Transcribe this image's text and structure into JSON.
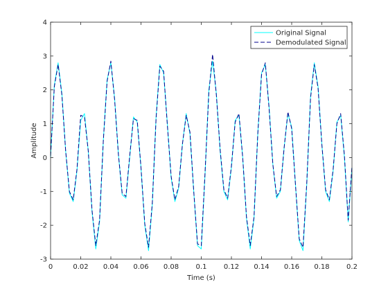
{
  "chart_data": {
    "type": "line",
    "xlabel": "Time (s)",
    "ylabel": "Amplitude",
    "xlim": [
      0,
      0.2
    ],
    "ylim": [
      -3,
      4
    ],
    "xticks": [
      0,
      0.02,
      0.04,
      0.06,
      0.08,
      0.1,
      0.12,
      0.14,
      0.16,
      0.18,
      0.2
    ],
    "yticks": [
      -3,
      -2,
      -1,
      0,
      1,
      2,
      3,
      4
    ],
    "xtick_labels": [
      "0",
      "0.02",
      "0.04",
      "0.06",
      "0.08",
      "0.1",
      "0.12",
      "0.14",
      "0.16",
      "0.18",
      "0.2"
    ],
    "ytick_labels": [
      "-3",
      "-2",
      "-1",
      "0",
      "1",
      "2",
      "3",
      "4"
    ],
    "grid": false,
    "legend_position": "top-right",
    "x": [
      0,
      0.0025,
      0.005,
      0.0075,
      0.01,
      0.0125,
      0.015,
      0.0175,
      0.02,
      0.0225,
      0.025,
      0.0275,
      0.03,
      0.0325,
      0.035,
      0.0375,
      0.04,
      0.0425,
      0.045,
      0.0475,
      0.05,
      0.0525,
      0.055,
      0.0575,
      0.06,
      0.0625,
      0.065,
      0.0675,
      0.07,
      0.0725,
      0.075,
      0.0775,
      0.08,
      0.0825,
      0.085,
      0.0875,
      0.09,
      0.0925,
      0.095,
      0.0975,
      0.1,
      0.1025,
      0.105,
      0.1075,
      0.11,
      0.1125,
      0.115,
      0.1175,
      0.12,
      0.1225,
      0.125,
      0.1275,
      0.13,
      0.1325,
      0.135,
      0.1375,
      0.14,
      0.1425,
      0.145,
      0.1475,
      0.15,
      0.1525,
      0.155,
      0.1575,
      0.16,
      0.1625,
      0.165,
      0.1675,
      0.17,
      0.1725,
      0.175,
      0.1775,
      0.18,
      0.1825,
      0.185,
      0.1875,
      0.19,
      0.1925,
      0.195,
      0.1975,
      0.2
    ],
    "series": [
      {
        "name": "Original Signal",
        "color": "#00ffff",
        "style": "solid",
        "values": [
          0,
          2.15,
          2.8,
          1.9,
          0.2,
          -1.05,
          -1.3,
          -0.4,
          1.1,
          1.3,
          0.2,
          -1.6,
          -2.7,
          -1.9,
          0.5,
          2.3,
          2.8,
          1.75,
          0.1,
          -1.1,
          -1.2,
          0.0,
          1.2,
          1.05,
          -0.3,
          -2.0,
          -2.75,
          -1.4,
          1.2,
          2.75,
          2.5,
          1.0,
          -0.6,
          -1.3,
          -0.9,
          0.4,
          1.3,
          0.7,
          -1.0,
          -2.6,
          -2.7,
          -0.5,
          2.0,
          2.85,
          1.9,
          0.2,
          -1.0,
          -1.25,
          -0.3,
          1.1,
          1.25,
          0.0,
          -1.8,
          -2.7,
          -1.8,
          0.7,
          2.5,
          2.75,
          1.5,
          -0.2,
          -1.2,
          -1.0,
          0.3,
          1.3,
          0.9,
          -0.8,
          -2.45,
          -2.75,
          -0.8,
          1.8,
          2.8,
          2.1,
          0.4,
          -1.0,
          -1.3,
          -0.4,
          1.05,
          1.25,
          0.0,
          -1.9,
          -0.3
        ]
      },
      {
        "name": "Demodulated Signal",
        "color": "#00008b",
        "style": "dashed",
        "values": [
          0.05,
          2.1,
          2.75,
          1.85,
          0.2,
          -1.0,
          -1.25,
          -0.35,
          1.25,
          1.2,
          0.2,
          -1.55,
          -2.6,
          -1.85,
          0.5,
          2.25,
          2.85,
          1.7,
          0.1,
          -1.05,
          -1.15,
          0.05,
          1.15,
          1.1,
          -0.3,
          -1.95,
          -2.65,
          -1.35,
          1.15,
          2.7,
          2.55,
          0.95,
          -0.55,
          -1.25,
          -0.85,
          0.4,
          1.25,
          0.75,
          -1.0,
          -2.55,
          -2.6,
          -0.45,
          1.9,
          3.05,
          1.85,
          0.25,
          -0.95,
          -1.2,
          -0.25,
          1.05,
          1.3,
          0.0,
          -1.75,
          -2.6,
          -1.75,
          0.7,
          2.45,
          2.8,
          1.45,
          -0.2,
          -1.15,
          -0.95,
          0.3,
          1.35,
          0.85,
          -0.8,
          -2.4,
          -2.65,
          -0.75,
          1.75,
          2.75,
          2.05,
          0.4,
          -0.95,
          -1.25,
          -0.35,
          1.0,
          1.3,
          0.05,
          -1.85,
          -0.25
        ]
      }
    ]
  }
}
